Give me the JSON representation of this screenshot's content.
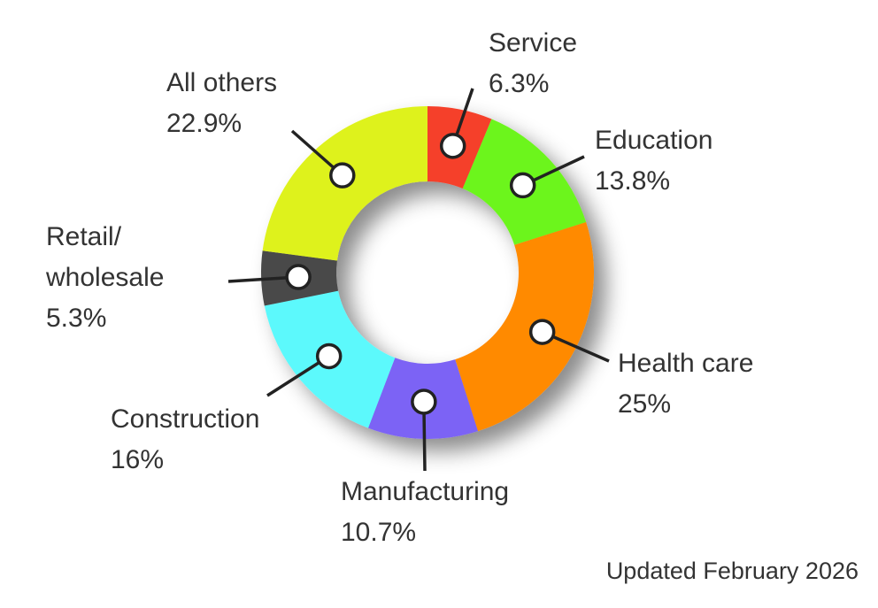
{
  "chart_data": {
    "type": "donut",
    "categories": [
      "Service",
      "Education",
      "Health care",
      "Manufacturing",
      "Construction",
      "Retail/\nwholesale",
      "All others"
    ],
    "values": [
      6.3,
      13.8,
      25,
      10.7,
      16,
      5.3,
      22.9
    ],
    "value_labels": [
      "6.3%",
      "13.8%",
      "25%",
      "10.7%",
      "16%",
      "5.3%",
      "22.9%"
    ],
    "colors": [
      "#f5402c",
      "#6cf51a",
      "#ff8a00",
      "#7b63f5",
      "#5cf9fc",
      "#4a4a4a",
      "#def21a"
    ],
    "note": "Updated February 2026"
  }
}
